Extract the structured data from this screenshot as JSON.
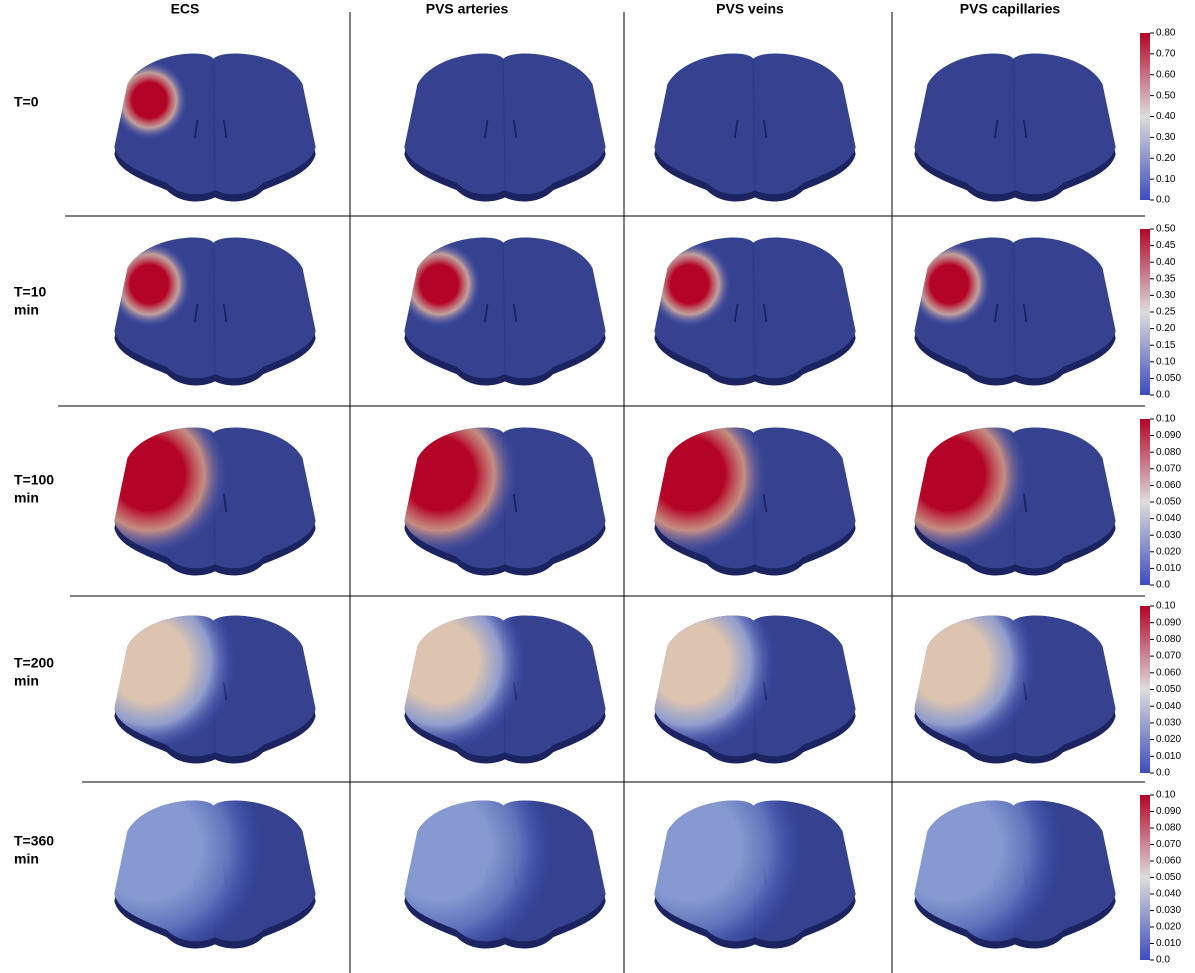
{
  "columns": [
    "ECS",
    "PVS arteries",
    "PVS veins",
    "PVS capillaries"
  ],
  "rows": [
    {
      "label": [
        "T=0"
      ],
      "colorbar_ticks": [
        "0.80",
        "0.70",
        "0.60",
        "0.50",
        "0.40",
        "0.30",
        "0.20",
        "0.10",
        "0.0"
      ]
    },
    {
      "label": [
        "T=10",
        "min"
      ],
      "colorbar_ticks": [
        "0.50",
        "0.45",
        "0.40",
        "0.35",
        "0.30",
        "0.25",
        "0.20",
        "0.15",
        "0.10",
        "0.050",
        "0.0"
      ]
    },
    {
      "label": [
        "T=100",
        "min"
      ],
      "colorbar_ticks": [
        "0.10",
        "0.090",
        "0.080",
        "0.070",
        "0.060",
        "0.050",
        "0.040",
        "0.030",
        "0.020",
        "0.010",
        "0.0"
      ]
    },
    {
      "label": [
        "T=200",
        "min"
      ],
      "colorbar_ticks": [
        "0.10",
        "0.090",
        "0.080",
        "0.070",
        "0.060",
        "0.050",
        "0.040",
        "0.030",
        "0.020",
        "0.010",
        "0.0"
      ]
    },
    {
      "label": [
        "T=360",
        "min"
      ],
      "colorbar_ticks": [
        "0.10",
        "0.090",
        "0.080",
        "0.070",
        "0.060",
        "0.050",
        "0.040",
        "0.030",
        "0.020",
        "0.010",
        "0.0"
      ]
    }
  ]
}
